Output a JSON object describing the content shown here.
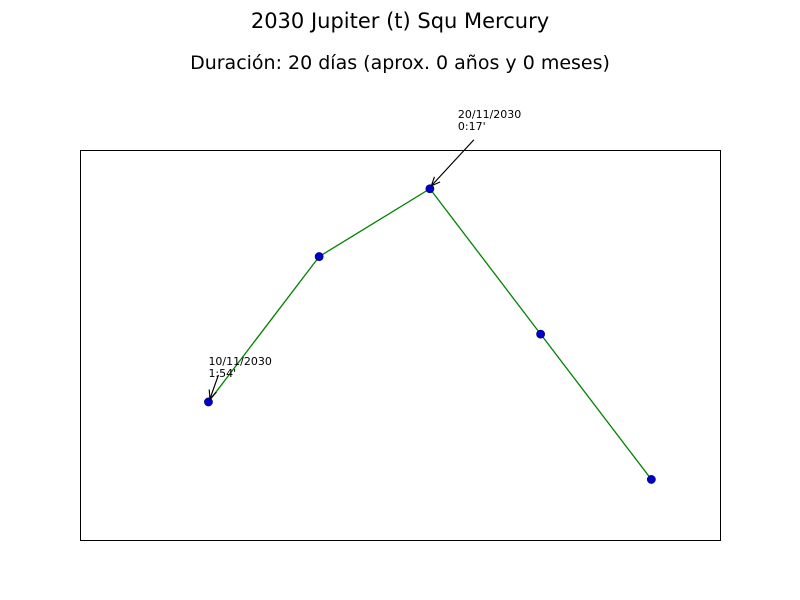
{
  "chart_data": {
    "type": "line",
    "title": "2030 Jupiter (t) Squ Mercury",
    "subtitle": "Duración: 20 días (aprox. 0 años y 0 meses)",
    "xlabel": "",
    "ylabel": "",
    "grid": false,
    "axes_ticks_visible": false,
    "x": [
      0,
      5,
      10,
      15,
      20
    ],
    "y": [
      -1.9,
      1.1,
      2.5,
      -0.5,
      -3.5
    ],
    "xlim": [
      -5.8,
      23.1
    ],
    "ylim": [
      -4.75,
      3.3
    ],
    "line_color": "#008000",
    "marker_face_color": "#0000cc",
    "marker_edge_color": "#000080",
    "annotations": [
      {
        "point_index": 0,
        "date": "10/11/2030",
        "value": "1:54'"
      },
      {
        "point_index": 2,
        "date": "20/11/2030",
        "value": "0:17'"
      }
    ]
  }
}
